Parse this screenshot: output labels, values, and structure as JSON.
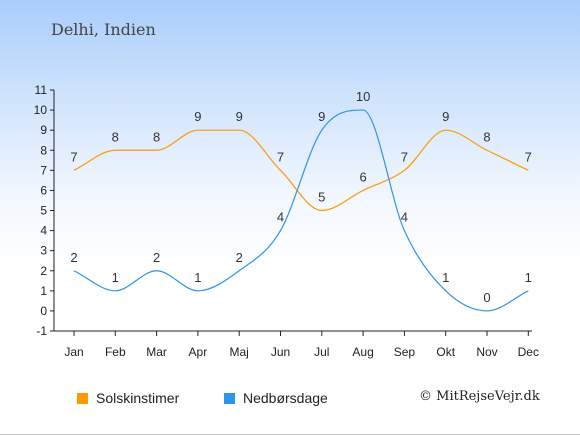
{
  "title": "Delhi, Indien",
  "copyright": "© MitRejseVejr.dk",
  "chart_data": {
    "type": "line",
    "categories": [
      "Jan",
      "Feb",
      "Mar",
      "Apr",
      "Maj",
      "Jun",
      "Jul",
      "Aug",
      "Sep",
      "Okt",
      "Nov",
      "Dec"
    ],
    "ylim": [
      -1,
      11
    ],
    "yticks": [
      "-1",
      "0",
      "1",
      "2",
      "3",
      "4",
      "5",
      "6",
      "7",
      "8",
      "9",
      "10",
      "11"
    ],
    "grid": false,
    "legend_placement": "bottom-left",
    "series": [
      {
        "name": "Solskinstimer",
        "color": "#ff9900",
        "values": [
          7,
          8,
          8,
          9,
          9,
          7,
          5,
          6,
          7,
          9,
          8,
          7
        ]
      },
      {
        "name": "Nedbørsdage",
        "color": "#2f95e6",
        "values": [
          2,
          1,
          2,
          1,
          2,
          4,
          9,
          10,
          4,
          1,
          0,
          1
        ]
      }
    ]
  }
}
